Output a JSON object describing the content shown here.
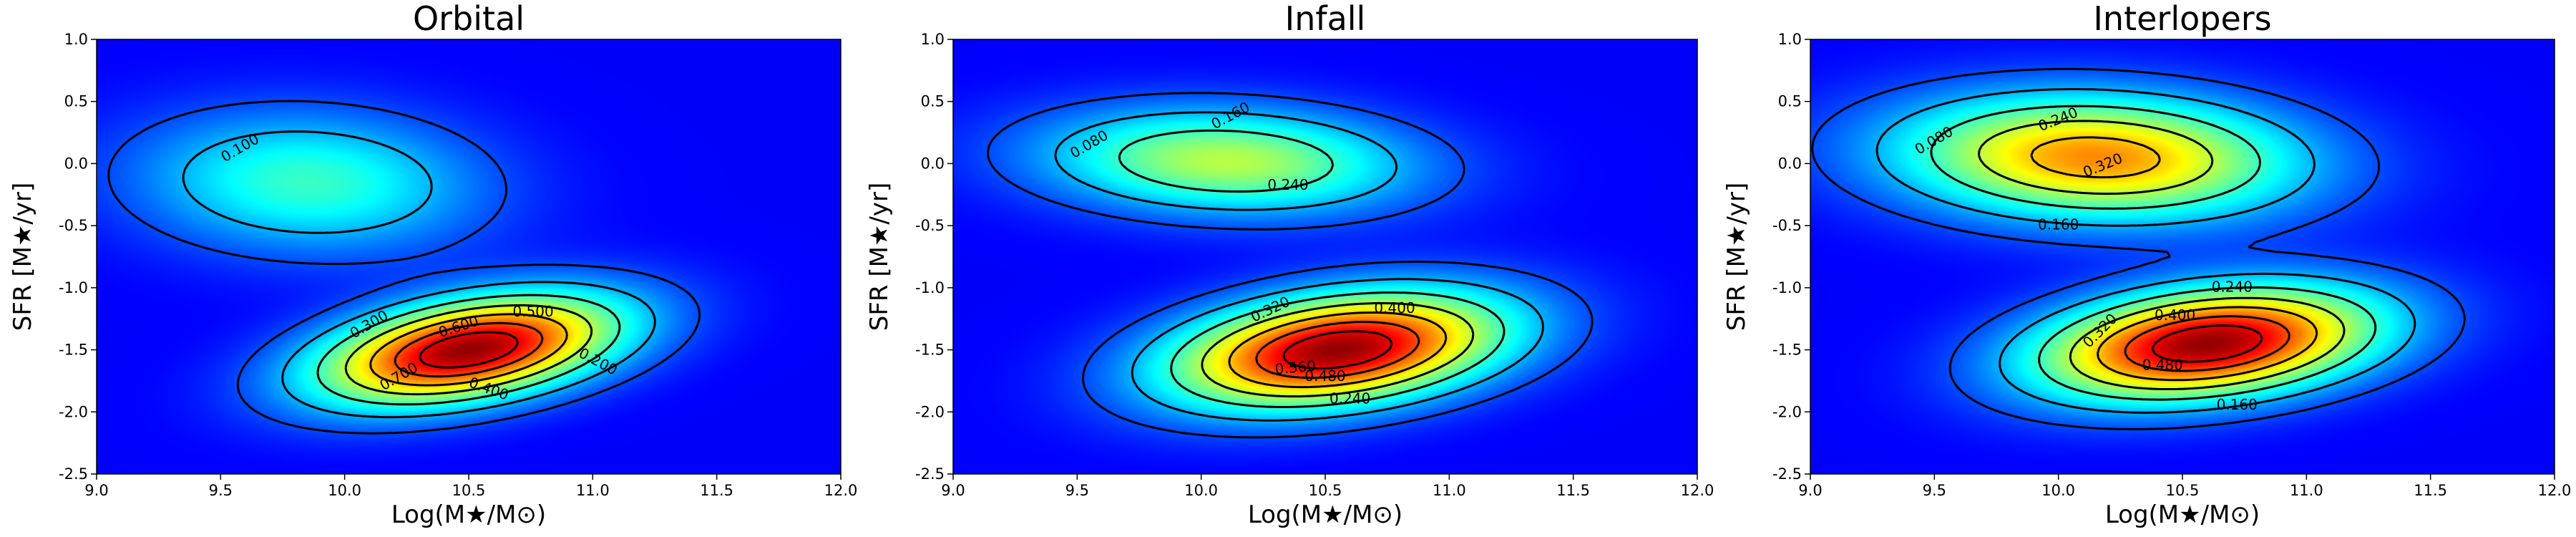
{
  "chart_data": [
    {
      "type": "heatmap",
      "title": "Orbital",
      "xlabel": "Log(M★/M⊙)",
      "ylabel": "SFR [M★/yr]",
      "xlim": [
        9.0,
        12.0
      ],
      "ylim": [
        -2.5,
        1.0
      ],
      "xticks": [
        "9.0",
        "9.5",
        "10.0",
        "10.5",
        "11.0",
        "11.5",
        "12.0"
      ],
      "yticks": [
        "1.0",
        "0.5",
        "0.0",
        "-0.5",
        "-1.0",
        "-1.5",
        "-2.0",
        "-2.5"
      ],
      "colormap": "jet",
      "density_peaks": [
        {
          "x": 10.5,
          "y": -1.5,
          "height": 1.0,
          "sx": 0.42,
          "sy": 0.24,
          "tilt": 0.45
        },
        {
          "x": 9.85,
          "y": -0.15,
          "height": 0.3,
          "sx": 0.45,
          "sy": 0.36,
          "tilt": -0.2
        }
      ],
      "contour_labels": [
        {
          "text": "0.100",
          "x": 9.58,
          "y": 0.12,
          "angle": -30
        },
        {
          "text": "0.300",
          "x": 10.1,
          "y": -1.3,
          "angle": -30
        },
        {
          "text": "0.600",
          "x": 10.46,
          "y": -1.32,
          "angle": -18
        },
        {
          "text": "0.500",
          "x": 10.76,
          "y": -1.2,
          "angle": 0
        },
        {
          "text": "0.700",
          "x": 10.22,
          "y": -1.72,
          "angle": -30
        },
        {
          "text": "0.400",
          "x": 10.58,
          "y": -1.82,
          "angle": 20
        },
        {
          "text": "0.200",
          "x": 11.02,
          "y": -1.6,
          "angle": 28
        }
      ]
    },
    {
      "type": "heatmap",
      "title": "Infall",
      "xlabel": "Log(M★/M⊙)",
      "ylabel": "SFR [M★/yr]",
      "xlim": [
        9.0,
        12.0
      ],
      "ylim": [
        -2.5,
        1.0
      ],
      "xticks": [
        "9.0",
        "9.5",
        "10.0",
        "10.5",
        "11.0",
        "11.5",
        "12.0"
      ],
      "yticks": [
        "1.0",
        "0.5",
        "0.0",
        "-0.5",
        "-1.0",
        "-1.5",
        "-2.0",
        "-2.5"
      ],
      "colormap": "jet",
      "density_peaks": [
        {
          "x": 10.55,
          "y": -1.5,
          "height": 1.0,
          "sx": 0.45,
          "sy": 0.27,
          "tilt": 0.35
        },
        {
          "x": 10.1,
          "y": 0.02,
          "height": 0.45,
          "sx": 0.48,
          "sy": 0.27,
          "tilt": -0.1
        }
      ],
      "contour_labels": [
        {
          "text": "0.080",
          "x": 9.55,
          "y": 0.15,
          "angle": -30
        },
        {
          "text": "0.160",
          "x": 10.12,
          "y": 0.38,
          "angle": -28
        },
        {
          "text": "0.240",
          "x": 10.35,
          "y": -0.18,
          "angle": 0
        },
        {
          "text": "0.320",
          "x": 10.28,
          "y": -1.18,
          "angle": -25
        },
        {
          "text": "0.400",
          "x": 10.78,
          "y": -1.17,
          "angle": 0
        },
        {
          "text": "0.560",
          "x": 10.38,
          "y": -1.65,
          "angle": -5
        },
        {
          "text": "0.480",
          "x": 10.5,
          "y": -1.72,
          "angle": 0
        },
        {
          "text": "0.240",
          "x": 10.6,
          "y": -1.9,
          "angle": 0
        }
      ]
    },
    {
      "type": "heatmap",
      "title": "Interlopers",
      "xlabel": "Log(M★/M⊙)",
      "ylabel": "SFR [M★/yr]",
      "xlim": [
        9.0,
        12.0
      ],
      "ylim": [
        -2.5,
        1.0
      ],
      "xticks": [
        "9.0",
        "9.5",
        "10.0",
        "10.5",
        "11.0",
        "11.5",
        "12.0"
      ],
      "yticks": [
        "1.0",
        "0.5",
        "0.0",
        "-0.5",
        "-1.0",
        "-1.5",
        "-2.0",
        "-2.5"
      ],
      "colormap": "jet",
      "density_peaks": [
        {
          "x": 10.6,
          "y": -1.45,
          "height": 1.0,
          "sx": 0.45,
          "sy": 0.27,
          "tilt": 0.3
        },
        {
          "x": 10.15,
          "y": 0.05,
          "height": 0.68,
          "sx": 0.52,
          "sy": 0.32,
          "tilt": -0.1
        }
      ],
      "contour_labels": [
        {
          "text": "0.080",
          "x": 9.5,
          "y": 0.18,
          "angle": -30
        },
        {
          "text": "0.240",
          "x": 10.0,
          "y": 0.35,
          "angle": -22
        },
        {
          "text": "0.320",
          "x": 10.18,
          "y": -0.02,
          "angle": -22
        },
        {
          "text": "0.160",
          "x": 10.0,
          "y": -0.5,
          "angle": 0
        },
        {
          "text": "0.240",
          "x": 10.7,
          "y": -1.0,
          "angle": 0
        },
        {
          "text": "0.320",
          "x": 10.17,
          "y": -1.35,
          "angle": -45
        },
        {
          "text": "0.400",
          "x": 10.47,
          "y": -1.23,
          "angle": 0
        },
        {
          "text": "0.480",
          "x": 10.42,
          "y": -1.63,
          "angle": 0
        },
        {
          "text": "0.160",
          "x": 10.72,
          "y": -1.95,
          "angle": 0
        }
      ]
    }
  ]
}
